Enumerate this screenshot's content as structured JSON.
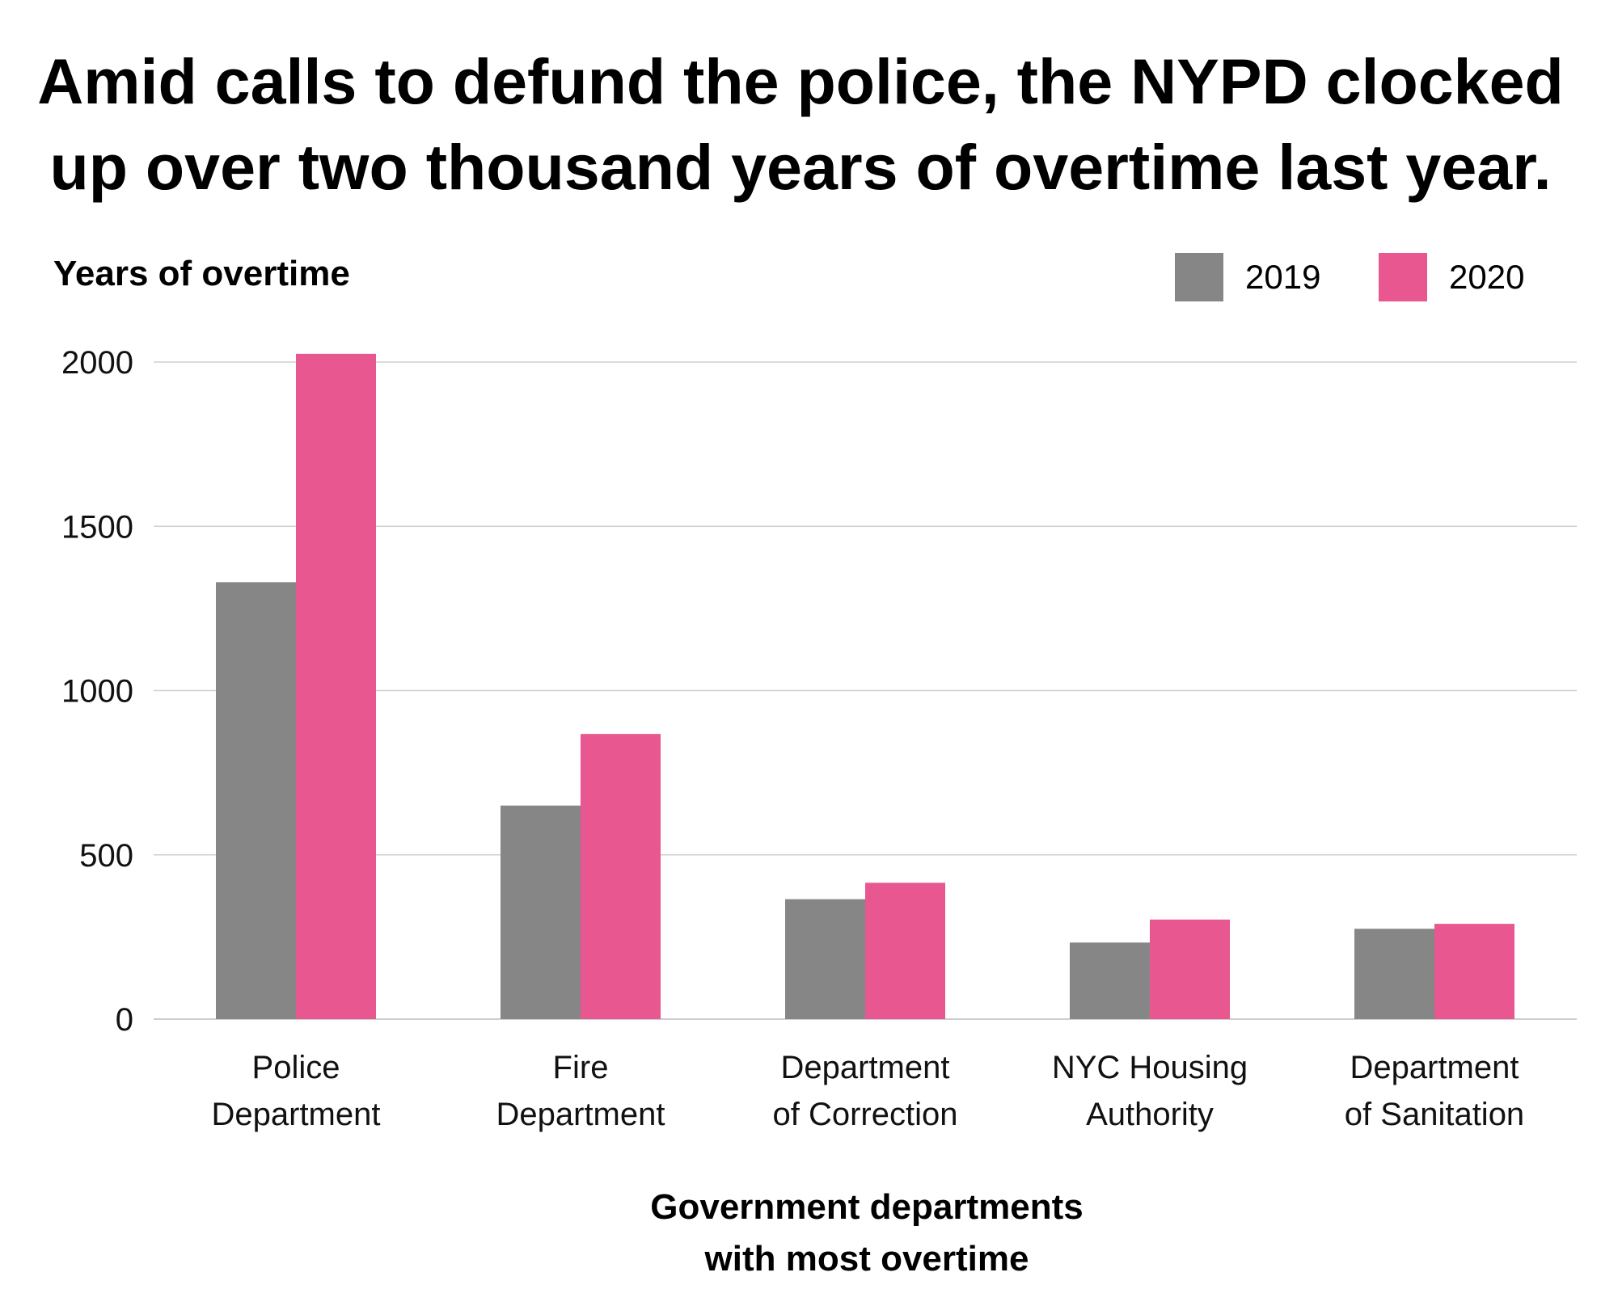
{
  "title_lines": [
    "Amid calls to defund the police, the NYPD clocked",
    "up over two thousand years of overtime last year."
  ],
  "legend": [
    {
      "label": "2019",
      "color": "#868686"
    },
    {
      "label": "2020",
      "color": "#e8578f"
    }
  ],
  "chart_data": {
    "type": "bar",
    "title": "Amid calls to defund the police, the NYPD clocked up over two thousand years of overtime last year.",
    "ylabel": "Years of overtime",
    "xlabel_lines": [
      "Government departments",
      "with most overtime"
    ],
    "categories": [
      [
        "Police",
        "Department"
      ],
      [
        "Fire",
        "Department"
      ],
      [
        "Department",
        "of Correction"
      ],
      [
        "NYC Housing",
        "Authority"
      ],
      [
        "Department",
        "of Sanitation"
      ]
    ],
    "series": [
      {
        "name": "2019",
        "color": "#868686",
        "values": [
          1330,
          650,
          365,
          233,
          275
        ]
      },
      {
        "name": "2020",
        "color": "#e8578f",
        "values": [
          2025,
          868,
          415,
          303,
          290
        ]
      }
    ],
    "yticks": [
      0,
      500,
      1000,
      1500,
      2000
    ],
    "ylim": [
      0,
      2000
    ],
    "grid": true,
    "legend_position": "top-right"
  }
}
